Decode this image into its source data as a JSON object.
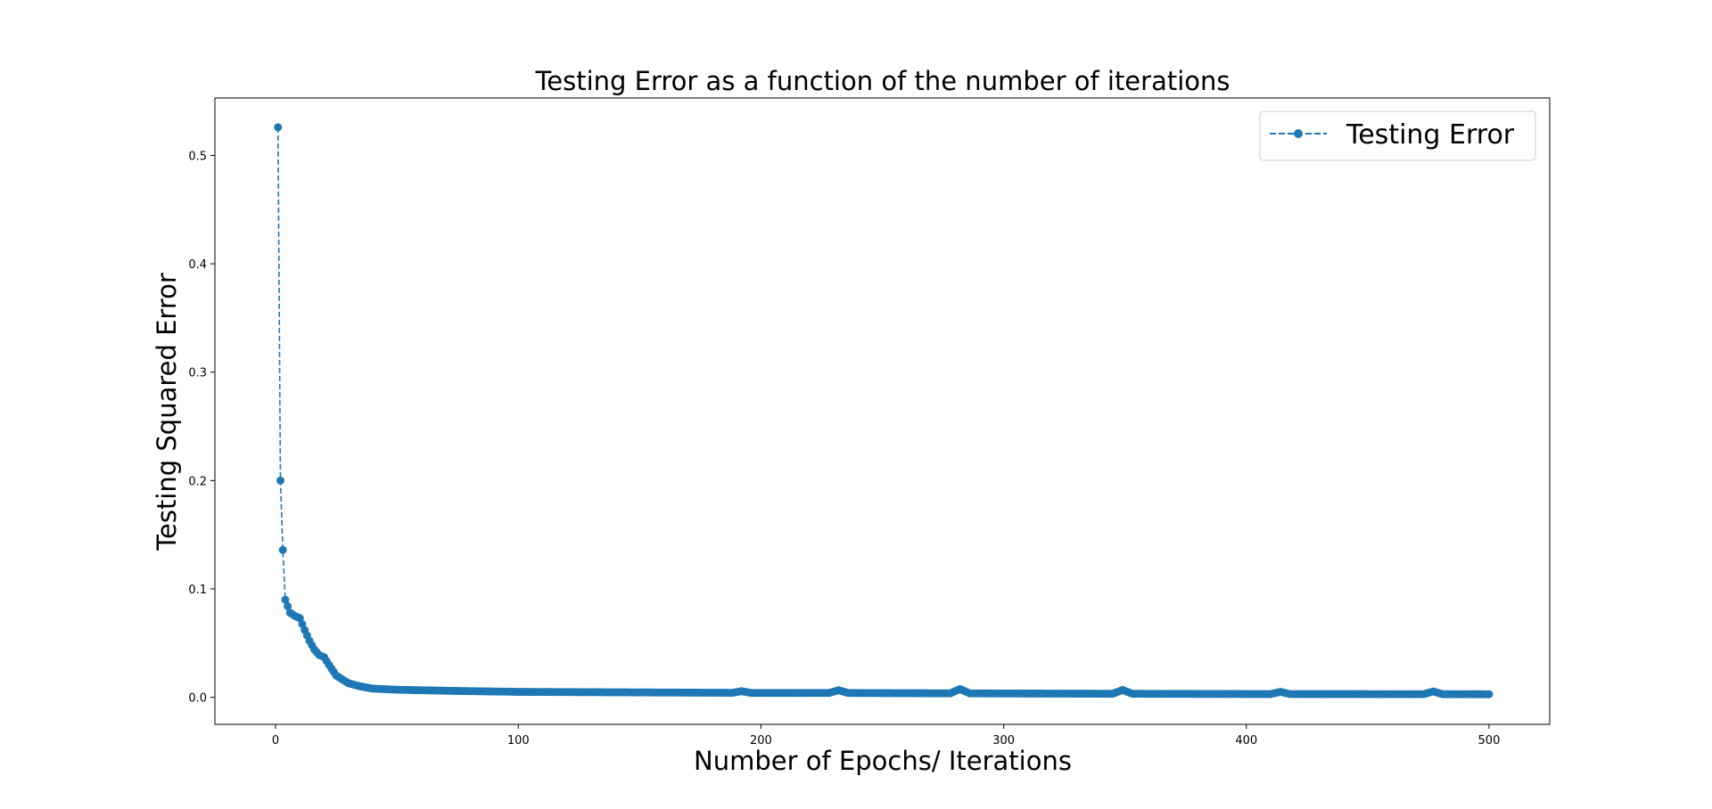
{
  "chart_data": {
    "type": "line",
    "title": "Testing Error as a function of the number of iterations",
    "xlabel": "Number of Epochs/ Iterations",
    "ylabel": "Testing Squared Error",
    "xlim": [
      -25,
      525
    ],
    "ylim": [
      -0.025,
      0.553
    ],
    "xticks": [
      {
        "value": 0,
        "label": "0"
      },
      {
        "value": 100,
        "label": "100"
      },
      {
        "value": 200,
        "label": "200"
      },
      {
        "value": 300,
        "label": "300"
      },
      {
        "value": 400,
        "label": "400"
      },
      {
        "value": 500,
        "label": "500"
      }
    ],
    "yticks": [
      {
        "value": 0.0,
        "label": "0.0"
      },
      {
        "value": 0.1,
        "label": "0.1"
      },
      {
        "value": 0.2,
        "label": "0.2"
      },
      {
        "value": 0.3,
        "label": "0.3"
      },
      {
        "value": 0.4,
        "label": "0.4"
      },
      {
        "value": 0.5,
        "label": "0.5"
      }
    ],
    "grid": false,
    "legend_position": "top-right",
    "series": [
      {
        "name": "Testing Error",
        "color": "#1f77b4",
        "linestyle": "dashed",
        "marker": "circle",
        "x_range": [
          1,
          500
        ],
        "anchors": [
          [
            1,
            0.526
          ],
          [
            2,
            0.2
          ],
          [
            3,
            0.136
          ],
          [
            4,
            0.09
          ],
          [
            5,
            0.084
          ],
          [
            6,
            0.078
          ],
          [
            8,
            0.075
          ],
          [
            10,
            0.073
          ],
          [
            12,
            0.062
          ],
          [
            14,
            0.052
          ],
          [
            16,
            0.044
          ],
          [
            18,
            0.039
          ],
          [
            20,
            0.037
          ],
          [
            22,
            0.03
          ],
          [
            25,
            0.02
          ],
          [
            30,
            0.013
          ],
          [
            35,
            0.01
          ],
          [
            40,
            0.008
          ],
          [
            50,
            0.007
          ],
          [
            70,
            0.006
          ],
          [
            100,
            0.005
          ],
          [
            150,
            0.0045
          ],
          [
            200,
            0.004
          ],
          [
            230,
            0.004
          ],
          [
            300,
            0.0035
          ],
          [
            400,
            0.003
          ],
          [
            500,
            0.0028
          ]
        ],
        "bumps": [
          [
            192,
            0.0015
          ],
          [
            232,
            0.0025
          ],
          [
            282,
            0.004
          ],
          [
            349,
            0.0035
          ],
          [
            414,
            0.002
          ],
          [
            477,
            0.0025
          ]
        ]
      }
    ]
  }
}
